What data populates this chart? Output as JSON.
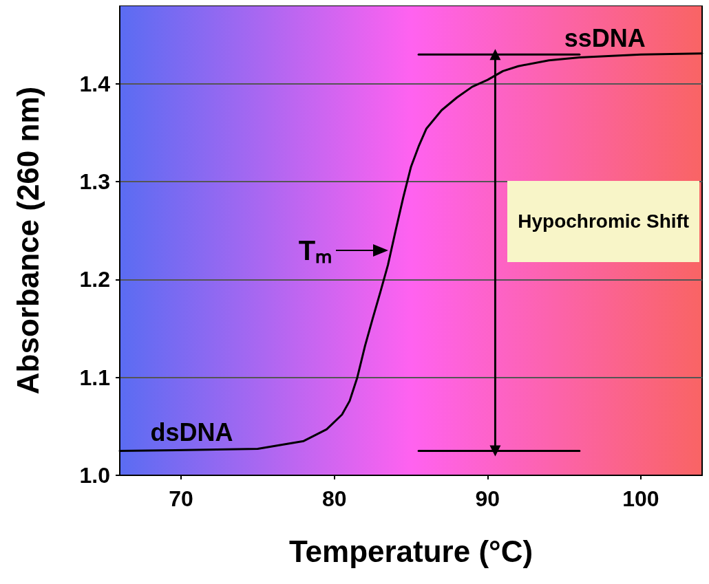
{
  "chart_data": {
    "type": "line",
    "xlabel": "Temperature (°C)",
    "ylabel": "Absorbance (260 nm)",
    "xlim": [
      66,
      104
    ],
    "ylim": [
      1.0,
      1.48
    ],
    "xticks": [
      70,
      80,
      90,
      100
    ],
    "yticks": [
      {
        "value": 1,
        "label": "1.0"
      },
      1.1,
      1.2,
      1.3,
      1.4
    ],
    "grid": "y",
    "marker": "none",
    "line_style": "solid",
    "series": [
      {
        "color": "#000000",
        "x": [
          66,
          71,
          75,
          78,
          79.5,
          80.5,
          81,
          81.5,
          82,
          82.5,
          83,
          83.5,
          84,
          84.5,
          85,
          85.5,
          86,
          87,
          88,
          89,
          90,
          91,
          92,
          94,
          96,
          100,
          104
        ],
        "values": [
          1.025,
          1.026,
          1.027,
          1.035,
          1.047,
          1.062,
          1.076,
          1.1,
          1.132,
          1.16,
          1.187,
          1.215,
          1.25,
          1.284,
          1.315,
          1.336,
          1.354,
          1.373,
          1.386,
          1.397,
          1.404,
          1.413,
          1.418,
          1.424,
          1.427,
          1.43,
          1.431
        ]
      },
      {
        "color": "#000000",
        "x": [
          85.5,
          96
        ],
        "values": [
          1.025,
          1.025
        ]
      },
      {
        "color": "#000000",
        "x": [
          85.5,
          96
        ],
        "values": [
          1.43,
          1.43
        ]
      },
      {
        "color": "#000000",
        "x": [
          90.5,
          90.5
        ],
        "values": [
          1.025,
          1.43
        ],
        "marker": "triangle"
      }
    ],
    "annotations": [
      {
        "text": "ssDNA",
        "x": 95,
        "y": 1.43
      },
      {
        "text": "dsDNA",
        "x": 68,
        "y": 1.026
      },
      {
        "text": "Tₘ",
        "x": 83.8,
        "y": 1.23
      },
      {
        "text": "Hypochromic Shift",
        "x": 90.5,
        "y": 1.25
      }
    ]
  }
}
